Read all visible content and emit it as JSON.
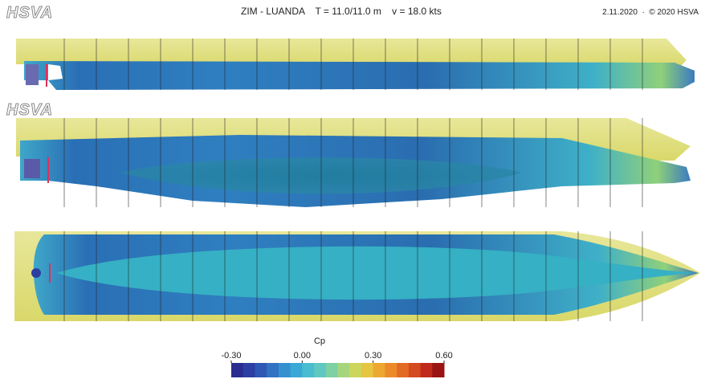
{
  "header": {
    "logo": "HSVA",
    "title": "ZIM - LUANDA    T = 11.0/11.0 m    v = 18.0 kts",
    "credit": "2.11.2020  ·  © 2020 HSVA"
  },
  "views": [
    {
      "logo": "HSVA"
    }
  ],
  "colorbar": {
    "label": "Cp",
    "range": [
      -0.3,
      0.6
    ],
    "ticks": [
      {
        "value": -0.3,
        "label": "-0.30"
      },
      {
        "value": 0,
        "label": "0.00"
      },
      {
        "value": 0.3,
        "label": "0.30"
      },
      {
        "value": 0.6,
        "label": "0.60"
      }
    ]
  }
}
